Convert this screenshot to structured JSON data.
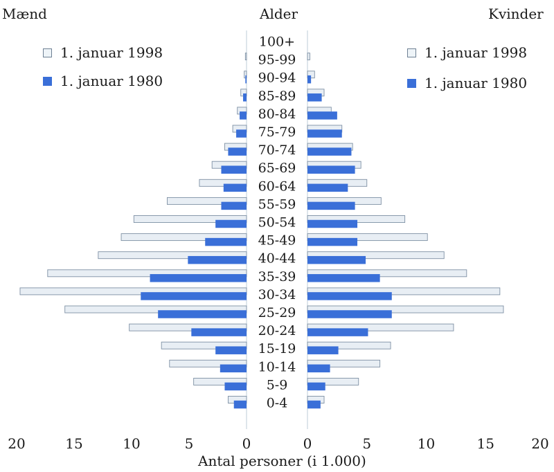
{
  "chart_data": {
    "type": "bar",
    "orientation": "horizontal-population-pyramid",
    "title_left": "Mænd",
    "title_center": "Alder",
    "title_right": "Kvinder",
    "xlabel": "Antal personer (i 1.000)",
    "xlim": [
      0,
      20
    ],
    "x_ticks_left": [
      "20",
      "15",
      "10",
      "5",
      "0"
    ],
    "x_ticks_right": [
      "0",
      "5",
      "10",
      "15",
      "20"
    ],
    "categories": [
      "100+",
      "95-99",
      "90-94",
      "85-89",
      "80-84",
      "75-79",
      "70-74",
      "65-69",
      "60-64",
      "55-59",
      "50-54",
      "45-49",
      "40-44",
      "35-39",
      "30-34",
      "25-29",
      "20-24",
      "15-19",
      "10-14",
      "5-9",
      "0-4"
    ],
    "series": [
      {
        "name": "1. januar 1998",
        "color": "#e8eef4",
        "men": [
          0.0,
          0.1,
          0.2,
          0.5,
          0.8,
          1.2,
          1.9,
          3.0,
          4.1,
          6.9,
          9.8,
          10.9,
          12.9,
          17.3,
          19.7,
          15.8,
          10.2,
          7.4,
          6.7,
          4.6,
          1.6
        ],
        "women": [
          0.0,
          0.2,
          0.6,
          1.4,
          2.0,
          2.9,
          3.8,
          4.5,
          5.0,
          6.2,
          8.2,
          10.1,
          11.5,
          13.4,
          16.2,
          16.5,
          12.3,
          7.0,
          6.1,
          4.3,
          1.4
        ]
      },
      {
        "name": "1. januar 1980",
        "color": "#3a6fd8",
        "men": [
          0.0,
          0.0,
          0.1,
          0.3,
          0.6,
          0.9,
          1.6,
          2.2,
          2.0,
          2.2,
          2.7,
          3.6,
          5.1,
          8.4,
          9.2,
          7.7,
          4.8,
          2.7,
          2.3,
          1.9,
          1.1
        ],
        "women": [
          0.0,
          0.0,
          0.3,
          1.2,
          2.5,
          2.9,
          3.7,
          4.0,
          3.4,
          4.0,
          4.2,
          4.2,
          4.9,
          6.1,
          7.1,
          7.1,
          5.1,
          2.6,
          1.9,
          1.5,
          1.1
        ]
      }
    ],
    "legend": {
      "men_side": [
        {
          "label": "1. januar 1998"
        },
        {
          "label": "1. januar 1980"
        }
      ],
      "women_side": [
        {
          "label": "1. januar 1998"
        },
        {
          "label": "1. januar 1980"
        }
      ]
    }
  }
}
